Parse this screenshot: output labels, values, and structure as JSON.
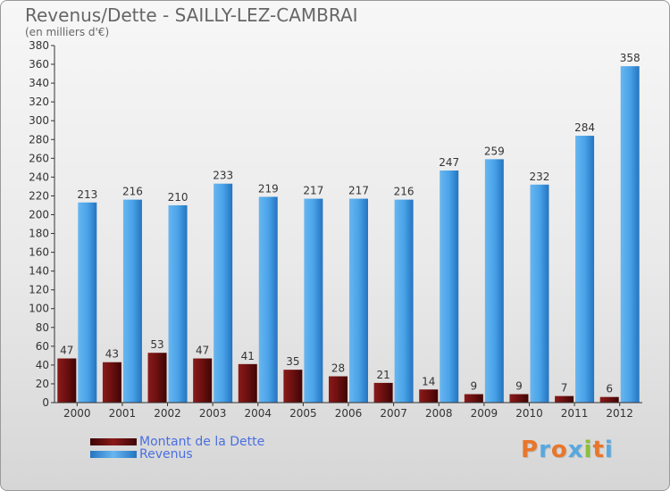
{
  "header": {
    "title": "Revenus/Dette - SAILLY-LEZ-CAMBRAI",
    "subtitle": "(en milliers d'€)"
  },
  "legend": {
    "items": [
      {
        "label": "Montant de la Dette",
        "color": "#6b0f0f"
      },
      {
        "label": "Revenus",
        "color": "#3a8fd8"
      }
    ]
  },
  "logo": {
    "text": "Proxiti"
  },
  "chart_data": {
    "type": "bar",
    "categories": [
      "2000",
      "2001",
      "2002",
      "2003",
      "2004",
      "2005",
      "2006",
      "2007",
      "2008",
      "2009",
      "2010",
      "2011",
      "2012"
    ],
    "series": [
      {
        "name": "Montant de la Dette",
        "color": "#6b0f0f",
        "values": [
          47,
          43,
          53,
          47,
          41,
          35,
          28,
          21,
          14,
          9,
          9,
          7,
          6
        ]
      },
      {
        "name": "Revenus",
        "color": "#3a8fd8",
        "values": [
          213,
          216,
          210,
          233,
          219,
          217,
          217,
          216,
          247,
          259,
          232,
          284,
          358
        ]
      }
    ],
    "ylim": [
      0,
      380
    ],
    "ytick_step": 20,
    "grid": false,
    "legend_position": "bottom-left"
  }
}
